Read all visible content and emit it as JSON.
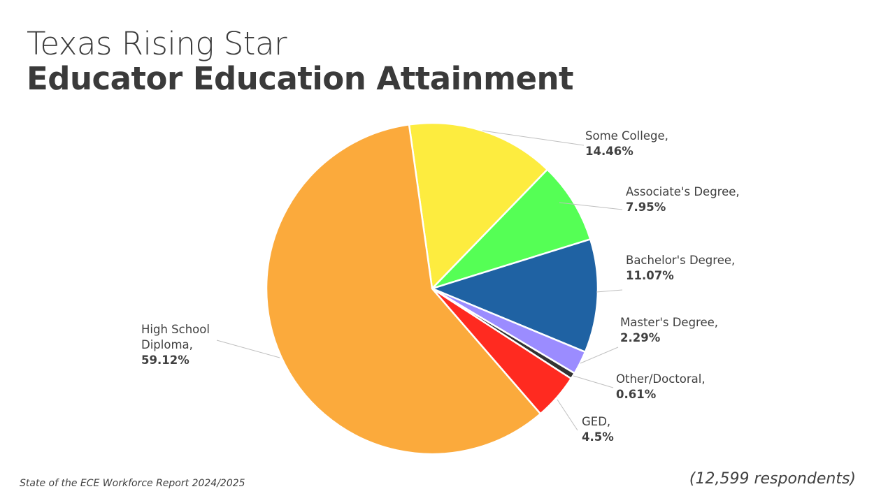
{
  "chart_data": {
    "type": "pie",
    "title": "Texas Rising Star",
    "subtitle": "Educator Education Attainment",
    "slices": [
      {
        "label": "Some College,",
        "value": 14.46,
        "value_label": "14.46%",
        "color": "#FDEC3F"
      },
      {
        "label": "Associate's Degree,",
        "value": 7.95,
        "value_label": "7.95%",
        "color": "#55FF55"
      },
      {
        "label": "Bachelor's Degree,",
        "value": 11.07,
        "value_label": "11.07%",
        "color": "#1F62A3"
      },
      {
        "label": "Master's Degree,",
        "value": 2.29,
        "value_label": "2.29%",
        "color": "#9B8CFF"
      },
      {
        "label": "Other/Doctoral,",
        "value": 0.61,
        "value_label": "0.61%",
        "color": "#333333"
      },
      {
        "label": "GED,",
        "value": 4.5,
        "value_label": "4.5%",
        "color": "#FF2A20"
      },
      {
        "label": "High School Diploma,",
        "value": 59.12,
        "value_label": "59.12%",
        "color": "#FBAA3C"
      }
    ],
    "legend": "data labels"
  },
  "footer": {
    "source": "State of the ECE Workforce Report 2024/2025",
    "respondents": "(12,599 respondents)"
  }
}
